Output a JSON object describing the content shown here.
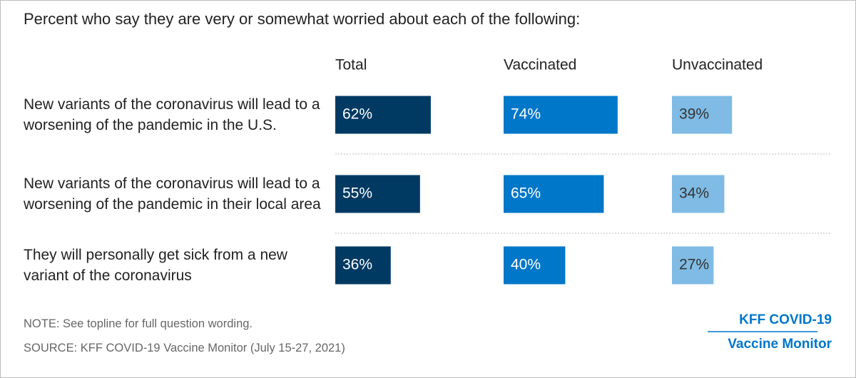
{
  "chart_data": {
    "type": "bar",
    "orientation": "horizontal",
    "title": "Percent who say they are very or somewhat worried about each of the following:",
    "categories": [
      "New variants of the coronavirus will lead to a worsening of the pandemic in the U.S.",
      "New variants of the coronavirus will lead to a worsening of the pandemic in their local area",
      "They will personally get sick from a new variant of the coronavirus"
    ],
    "series": [
      {
        "name": "Total",
        "color": "#003a63",
        "values": [
          62,
          55,
          36
        ],
        "value_labels": [
          "62%",
          "55%",
          "36%"
        ]
      },
      {
        "name": "Vaccinated",
        "color": "#0077c8",
        "values": [
          74,
          65,
          40
        ],
        "value_labels": [
          "74%",
          "65%",
          "40%"
        ]
      },
      {
        "name": "Unvaccinated",
        "color": "#7fbbe4",
        "values": [
          39,
          34,
          27
        ],
        "value_labels": [
          "39%",
          "34%",
          "27%"
        ]
      }
    ],
    "xlim": [
      0,
      100
    ],
    "note": "NOTE: See topline for full question wording.",
    "source": "SOURCE: KFF COVID-19 Vaccine Monitor (July 15-27, 2021)",
    "brand": [
      "KFF COVID-19",
      "Vaccine Monitor"
    ]
  }
}
